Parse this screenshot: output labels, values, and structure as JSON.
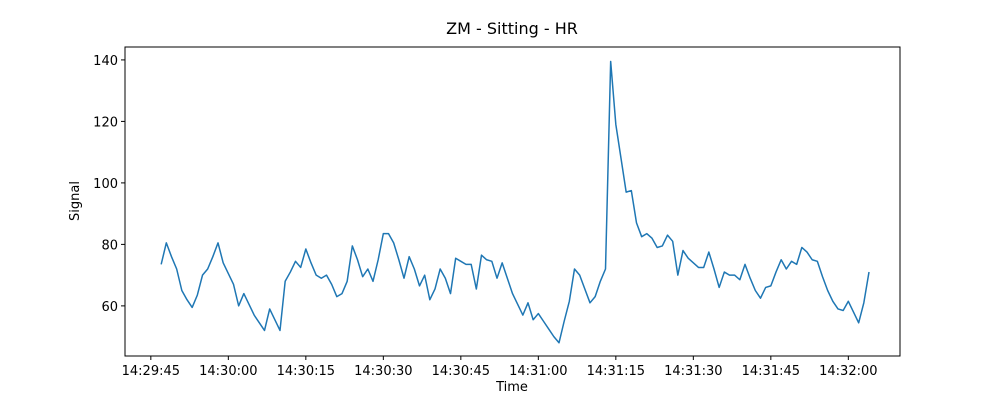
{
  "chart_data": {
    "type": "line",
    "title": "ZM - Sitting - HR",
    "x_label": "Time",
    "y_label": "Signal",
    "color": "#1f77b4",
    "x": [
      "14:29:47",
      "14:29:48",
      "14:29:49",
      "14:29:50",
      "14:29:51",
      "14:29:52",
      "14:29:53",
      "14:29:54",
      "14:29:55",
      "14:29:56",
      "14:29:57",
      "14:29:58",
      "14:29:59",
      "14:30:00",
      "14:30:01",
      "14:30:02",
      "14:30:03",
      "14:30:04",
      "14:30:05",
      "14:30:06",
      "14:30:07",
      "14:30:08",
      "14:30:09",
      "14:30:10",
      "14:30:11",
      "14:30:12",
      "14:30:13",
      "14:30:14",
      "14:30:15",
      "14:30:16",
      "14:30:17",
      "14:30:18",
      "14:30:19",
      "14:30:20",
      "14:30:21",
      "14:30:22",
      "14:30:23",
      "14:30:24",
      "14:30:25",
      "14:30:26",
      "14:30:27",
      "14:30:28",
      "14:30:29",
      "14:30:30",
      "14:30:31",
      "14:30:32",
      "14:30:33",
      "14:30:34",
      "14:30:35",
      "14:30:36",
      "14:30:37",
      "14:30:38",
      "14:30:39",
      "14:30:40",
      "14:30:41",
      "14:30:42",
      "14:30:43",
      "14:30:44",
      "14:30:45",
      "14:30:46",
      "14:30:47",
      "14:30:48",
      "14:30:49",
      "14:30:50",
      "14:30:51",
      "14:30:52",
      "14:30:53",
      "14:30:54",
      "14:30:55",
      "14:30:56",
      "14:30:57",
      "14:30:58",
      "14:30:59",
      "14:31:00",
      "14:31:01",
      "14:31:02",
      "14:31:03",
      "14:31:04",
      "14:31:05",
      "14:31:06",
      "14:31:07",
      "14:31:08",
      "14:31:09",
      "14:31:10",
      "14:31:11",
      "14:31:12",
      "14:31:13",
      "14:31:14",
      "14:31:15",
      "14:31:16",
      "14:31:17",
      "14:31:18",
      "14:31:19",
      "14:31:20",
      "14:31:21",
      "14:31:22",
      "14:31:23",
      "14:31:24",
      "14:31:25",
      "14:31:26",
      "14:31:27",
      "14:31:28",
      "14:31:29",
      "14:31:30",
      "14:31:31",
      "14:31:32",
      "14:31:33",
      "14:31:34",
      "14:31:35",
      "14:31:36",
      "14:31:37",
      "14:31:38",
      "14:31:39",
      "14:31:40",
      "14:31:41",
      "14:31:42",
      "14:31:43",
      "14:31:44",
      "14:31:45",
      "14:31:46",
      "14:31:47",
      "14:31:48",
      "14:31:49",
      "14:31:50",
      "14:31:51",
      "14:31:52",
      "14:31:53",
      "14:31:54",
      "14:31:55",
      "14:31:56",
      "14:31:57",
      "14:31:58",
      "14:31:59",
      "14:32:00",
      "14:32:01",
      "14:32:02",
      "14:32:03",
      "14:32:04"
    ],
    "values": [
      73.5,
      80.5,
      76,
      72,
      65,
      62,
      59.5,
      63.5,
      70,
      72,
      76,
      80.5,
      74,
      70.5,
      67,
      60,
      64,
      60.5,
      57,
      54.5,
      52,
      59,
      55.5,
      52,
      68,
      71,
      74.5,
      72.5,
      78.5,
      74,
      70,
      69,
      70,
      67,
      63,
      64,
      68,
      79.5,
      75,
      69.5,
      72,
      68,
      75,
      83.5,
      83.5,
      80.5,
      75,
      69,
      76,
      72,
      66.5,
      70,
      62,
      65.5,
      72,
      69,
      64,
      75.5,
      74.5,
      73.5,
      73.5,
      65.5,
      76.5,
      75,
      74.5,
      69,
      74,
      69,
      64,
      60.5,
      57,
      61,
      55.5,
      57.5,
      55,
      52.5,
      50,
      48,
      55,
      61.5,
      72,
      70,
      65.5,
      61,
      63,
      68,
      72,
      139.5,
      119,
      108,
      97,
      97.5,
      87,
      82.5,
      83.5,
      82,
      79,
      79.5,
      83,
      81,
      70,
      78,
      75.5,
      74,
      72.5,
      72.5,
      77.5,
      72,
      66,
      71,
      70,
      70,
      68.5,
      73.5,
      69,
      65,
      62.5,
      66,
      66.5,
      71,
      75,
      72,
      74.5,
      73.5,
      79,
      77.5,
      75,
      74.5,
      69.5,
      65,
      61.5,
      59,
      58.5,
      61.5,
      58,
      54.5,
      61,
      71
    ],
    "xlim": [
      "14:29:40",
      "14:32:10"
    ],
    "xticks": [
      "14:29:45",
      "14:30:00",
      "14:30:15",
      "14:30:30",
      "14:30:45",
      "14:31:00",
      "14:31:15",
      "14:31:30",
      "14:31:45",
      "14:32:00"
    ],
    "ylim": [
      43.7,
      144.2
    ],
    "yticks": [
      60,
      80,
      100,
      120,
      140
    ],
    "grid": false
  }
}
